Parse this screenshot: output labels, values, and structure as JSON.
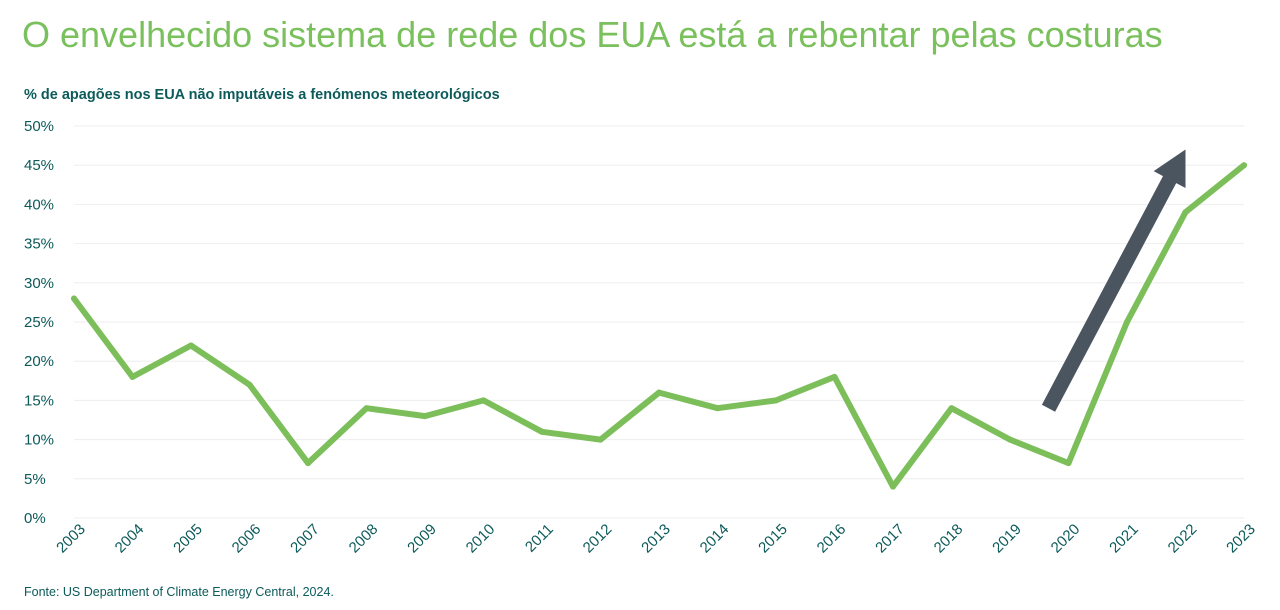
{
  "header": {
    "title": "O envelhecido sistema de rede dos EUA está a rebentar pelas costuras",
    "subtitle": "% de apagões nos EUA não imputáveis a fenómenos meteorológicos"
  },
  "footer": {
    "source": "Fonte: US Department of Climate Energy Central, 2024."
  },
  "colors": {
    "line": "#7cbf5a",
    "title": "#7ac05c",
    "text": "#0c5a5a",
    "grid": "#eeeeee",
    "arrow": "#4b5560"
  },
  "chart_data": {
    "type": "line",
    "title": "O envelhecido sistema de rede dos EUA está a rebentar pelas costuras",
    "subtitle": "% de apagões nos EUA não imputáveis a fenómenos meteorológicos",
    "x": [
      "2003",
      "2004",
      "2005",
      "2006",
      "2007",
      "2008",
      "2009",
      "2010",
      "2011",
      "2012",
      "2013",
      "2014",
      "2015",
      "2016",
      "2017",
      "2018",
      "2019",
      "2020",
      "2021",
      "2022",
      "2023"
    ],
    "values": [
      28,
      18,
      22,
      17,
      7,
      14,
      13,
      15,
      11,
      10,
      16,
      14,
      15,
      18,
      4,
      14,
      10,
      7,
      25,
      39,
      45
    ],
    "y_unit": "%",
    "ylim": [
      0,
      50
    ],
    "yticks": [
      0,
      5,
      10,
      15,
      20,
      25,
      30,
      35,
      40,
      45,
      50
    ],
    "ytick_labels": [
      "0%",
      "5%",
      "10%",
      "15%",
      "20%",
      "25%",
      "30%",
      "35%",
      "40%",
      "45%",
      "50%"
    ],
    "grid": true,
    "legend": "none",
    "annotations": [
      {
        "type": "arrow",
        "from": {
          "x": "2020",
          "y": 14
        },
        "to": {
          "x": "2022",
          "y": 47
        },
        "color": "#4b5560"
      }
    ]
  }
}
